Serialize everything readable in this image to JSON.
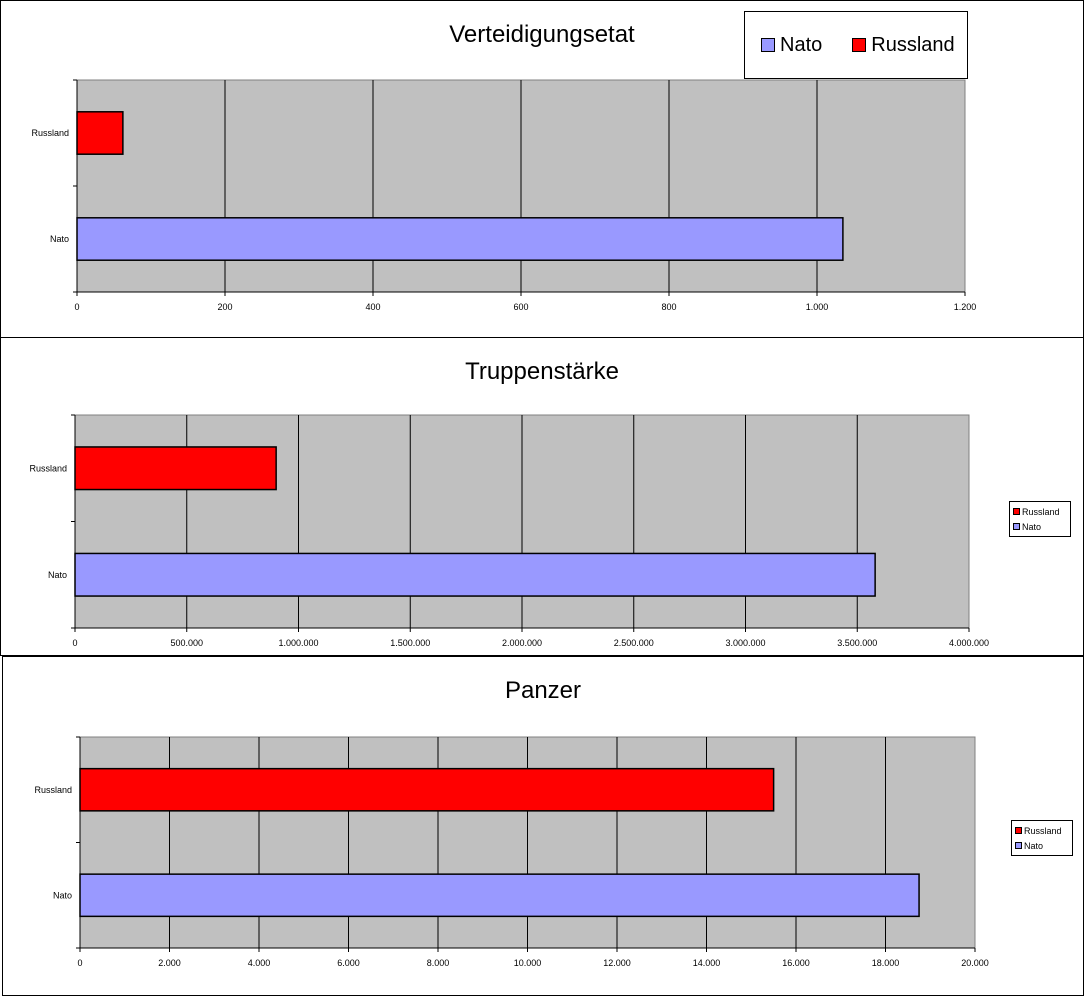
{
  "colors": {
    "nato": "#9999ff",
    "russland": "#ff0000",
    "plot_bg": "#c0c0c0",
    "grid": "#000000"
  },
  "chart_data": [
    {
      "type": "bar",
      "orientation": "horizontal",
      "title": "Verteidigungsetat",
      "categories": [
        "Russland",
        "Nato"
      ],
      "series": [
        {
          "name": "Nato",
          "values": [
            null,
            1035
          ]
        },
        {
          "name": "Russland",
          "values": [
            62,
            null
          ]
        }
      ],
      "xlim": [
        0,
        1200
      ],
      "ticks": [
        "0",
        "200",
        "400",
        "600",
        "800",
        "1.000",
        "1.200"
      ],
      "legend": "top-right",
      "legend_items": [
        "Nato",
        "Russland"
      ],
      "grid": true
    },
    {
      "type": "bar",
      "orientation": "horizontal",
      "title": "Truppenstärke",
      "categories": [
        "Russland",
        "Nato"
      ],
      "series": [
        {
          "name": "Nato",
          "values": [
            null,
            3580000
          ]
        },
        {
          "name": "Russland",
          "values": [
            900000,
            null
          ]
        }
      ],
      "xlim": [
        0,
        4000000
      ],
      "ticks": [
        "0",
        "500.000",
        "1.000.000",
        "1.500.000",
        "2.000.000",
        "2.500.000",
        "3.000.000",
        "3.500.000",
        "4.000.000"
      ],
      "legend": "right",
      "legend_items": [
        "Russland",
        "Nato"
      ],
      "grid": true
    },
    {
      "type": "bar",
      "orientation": "horizontal",
      "title": "Panzer",
      "categories": [
        "Russland",
        "Nato"
      ],
      "series": [
        {
          "name": "Nato",
          "values": [
            null,
            18750
          ]
        },
        {
          "name": "Russland",
          "values": [
            15500,
            null
          ]
        }
      ],
      "xlim": [
        0,
        20000
      ],
      "ticks": [
        "0",
        "2.000",
        "4.000",
        "6.000",
        "8.000",
        "10.000",
        "12.000",
        "14.000",
        "16.000",
        "18.000",
        "20.000"
      ],
      "legend": "right",
      "legend_items": [
        "Russland",
        "Nato"
      ],
      "grid": true
    }
  ]
}
